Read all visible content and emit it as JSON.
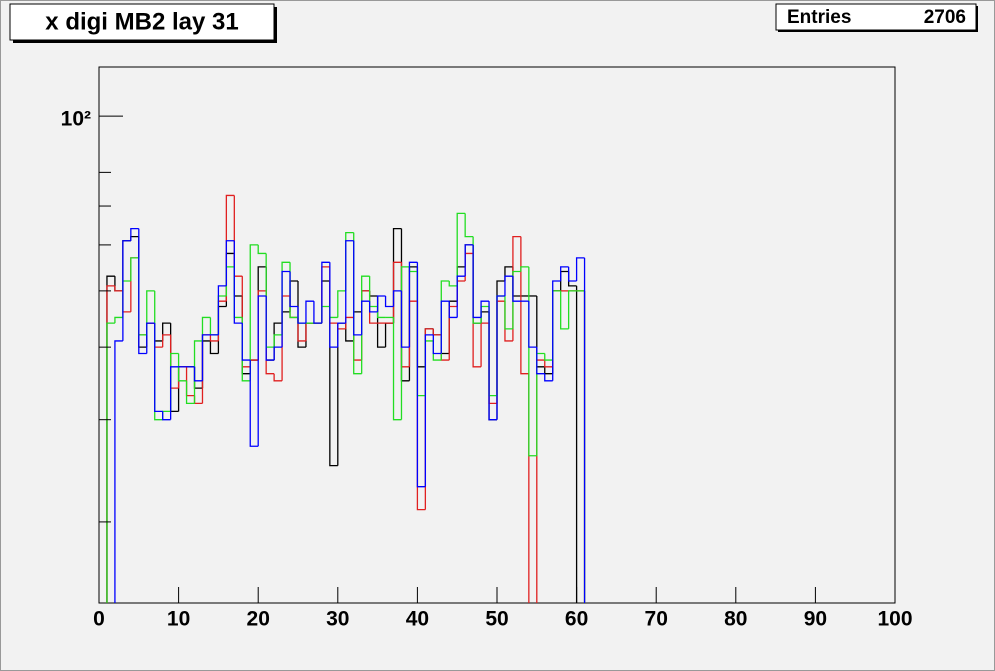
{
  "chart_data": {
    "type": "histogram",
    "title": "x digi MB2 lay 31",
    "stats": {
      "label": "Entries",
      "value": 2706
    },
    "bins": [
      0,
      1,
      2,
      3,
      4,
      5,
      6,
      7,
      8,
      9,
      10,
      11,
      12,
      13,
      14,
      15,
      16,
      17,
      18,
      19,
      20,
      21,
      22,
      23,
      24,
      25,
      26,
      27,
      28,
      29,
      30,
      31,
      32,
      33,
      34,
      35,
      36,
      37,
      38,
      39,
      40,
      41,
      42,
      43,
      44,
      45,
      46,
      47,
      48,
      49,
      50,
      51,
      52,
      53,
      54,
      55,
      56,
      57,
      58,
      59,
      60,
      61
    ],
    "series": [
      {
        "color": "#000000",
        "values": [
          0,
          53,
          50,
          61,
          62,
          40,
          44,
          41,
          44,
          31,
          37,
          37,
          34,
          41,
          39,
          47,
          58,
          49,
          36,
          38,
          55,
          38,
          44,
          46,
          52,
          40,
          44,
          44,
          52,
          25,
          44,
          41,
          46,
          50,
          49,
          40,
          44,
          64,
          35,
          55,
          37,
          43,
          42,
          39,
          48,
          55,
          60,
          44,
          46,
          30,
          52,
          55,
          49,
          49,
          49,
          37,
          36,
          50,
          54,
          51,
          0
        ]
      },
      {
        "color": "#e02020",
        "values": [
          0,
          51,
          50,
          46,
          57,
          42,
          44,
          40,
          42,
          34,
          37,
          33,
          32,
          42,
          41,
          48,
          73,
          53,
          37,
          38,
          50,
          36,
          35,
          49,
          45,
          41,
          44,
          44,
          55,
          44,
          43,
          45,
          38,
          50,
          44,
          44,
          44,
          56,
          37,
          48,
          21,
          43,
          42,
          38,
          47,
          52,
          58,
          37,
          44,
          32,
          48,
          41,
          62,
          36,
          0,
          38,
          37,
          50,
          50,
          50,
          50
        ]
      },
      {
        "color": "#22dd22",
        "values": [
          0,
          44,
          45,
          52,
          57,
          42,
          50,
          30,
          31,
          39,
          35,
          32,
          41,
          45,
          42,
          49,
          55,
          45,
          35,
          60,
          58,
          40,
          42,
          56,
          45,
          44,
          44,
          44,
          47,
          45,
          50,
          63,
          36,
          53,
          47,
          45,
          45,
          30,
          55,
          54,
          33,
          41,
          38,
          52,
          51,
          68,
          62,
          44,
          47,
          33,
          49,
          43,
          54,
          55,
          26,
          39,
          38,
          50,
          43,
          50,
          50
        ]
      },
      {
        "color": "#0000ff",
        "values": [
          0,
          0,
          41,
          61,
          64,
          39,
          44,
          31,
          30,
          37,
          37,
          37,
          35,
          42,
          42,
          51,
          61,
          44,
          38,
          27,
          49,
          38,
          40,
          54,
          47,
          44,
          48,
          44,
          56,
          40,
          44,
          61,
          42,
          48,
          46,
          49,
          47,
          50,
          40,
          56,
          23,
          42,
          39,
          48,
          45,
          53,
          60,
          45,
          48,
          30,
          49,
          53,
          48,
          48,
          40,
          36,
          35,
          52,
          55,
          52,
          57
        ]
      }
    ],
    "xlim": [
      0,
      100
    ],
    "xticks": [
      0,
      10,
      20,
      30,
      40,
      50,
      60,
      70,
      80,
      90,
      100
    ],
    "ylim": [
      14.5,
      121.5
    ],
    "log_y": true,
    "yticks": [
      {
        "value": 100,
        "label": "10²"
      }
    ],
    "yminorticks": [
      20,
      30,
      40,
      50,
      60,
      70,
      80
    ]
  }
}
